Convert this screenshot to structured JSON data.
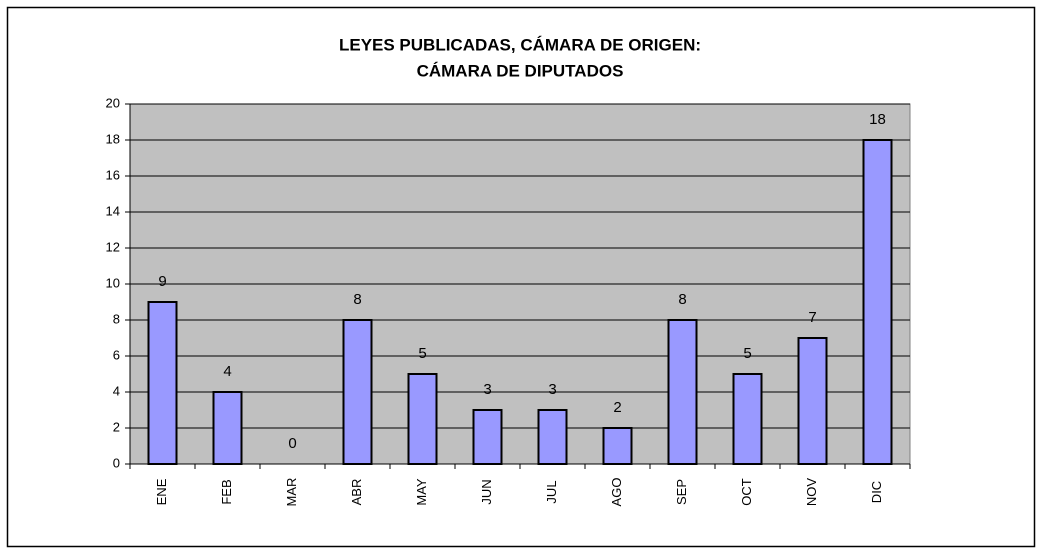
{
  "chart_data": {
    "type": "bar",
    "title": [
      "LEYES PUBLICADAS, CÁMARA DE ORIGEN:",
      "CÁMARA DE DIPUTADOS"
    ],
    "categories": [
      "ENE",
      "FEB",
      "MAR",
      "ABR",
      "MAY",
      "JUN",
      "JUL",
      "AGO",
      "SEP",
      "OCT",
      "NOV",
      "DIC"
    ],
    "values": [
      9,
      4,
      0,
      8,
      5,
      3,
      3,
      2,
      8,
      5,
      7,
      18
    ],
    "color": "#9999ff",
    "ylim": [
      0,
      20
    ],
    "yticks": [
      0,
      2,
      4,
      6,
      8,
      10,
      12,
      14,
      16,
      18,
      20
    ],
    "grid": true
  }
}
